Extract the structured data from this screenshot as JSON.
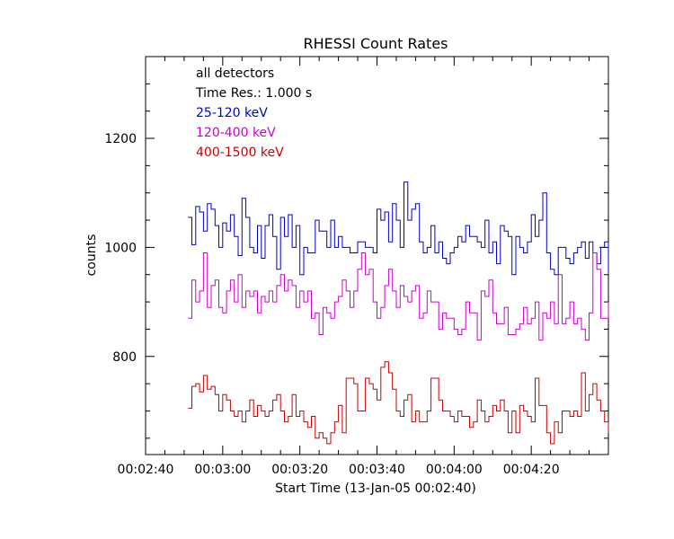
{
  "chart_data": {
    "type": "line",
    "title": "RHESSI Count Rates",
    "xlabel": "Start Time (13-Jan-05 00:02:40)",
    "ylabel": "counts",
    "xlim": [
      "00:02:40",
      "00:04:40"
    ],
    "ylim": [
      620,
      1350
    ],
    "x_ticks": [
      "00:02:40",
      "00:03:00",
      "00:03:20",
      "00:03:40",
      "00:04:00",
      "00:04:20"
    ],
    "y_ticks": [
      800,
      1000,
      1200
    ],
    "grid": false,
    "legend": {
      "placement": "top-left",
      "lines": [
        "all detectors",
        "Time Res.: 1.000 s"
      ]
    },
    "x_start": "00:02:51",
    "x_step_s": 1,
    "series": [
      {
        "name": "25-120 keV",
        "color": "#0000cc",
        "values": [
          1055,
          1005,
          1075,
          1065,
          1030,
          1080,
          1070,
          1040,
          1000,
          1045,
          1030,
          1060,
          1020,
          985,
          1090,
          1055,
          1000,
          990,
          1040,
          980,
          1040,
          1060,
          1020,
          960,
          1055,
          1020,
          1060,
          1000,
          1040,
          950,
          1000,
          990,
          990,
          1050,
          1030,
          1030,
          1000,
          1050,
          1000,
          1020,
          1000,
          1000,
          990,
          990,
          1010,
          1010,
          1000,
          1000,
          990,
          1070,
          1050,
          1065,
          1010,
          1080,
          1050,
          1000,
          1120,
          1050,
          1070,
          1080,
          1010,
          990,
          1000,
          1040,
          990,
          1010,
          980,
          970,
          990,
          1000,
          1020,
          1010,
          1040,
          1020,
          1020,
          1010,
          1000,
          1050,
          990,
          1010,
          970,
          1040,
          1030,
          1020,
          950,
          1020,
          1000,
          990,
          1010,
          1060,
          1020,
          1050,
          1100,
          990,
          960,
          950,
          1000,
          1000,
          980,
          970,
          990,
          1000,
          1010,
          980,
          1010,
          990,
          970,
          1000,
          1010,
          950,
          970,
          990,
          960,
          950,
          1030,
          940,
          920,
          1000,
          1000,
          960,
          970,
          920,
          940,
          960,
          970,
          950,
          950,
          980,
          980,
          990,
          990,
          970,
          910,
          940,
          950,
          960,
          980,
          1000
        ]
      },
      {
        "name": "120-400 keV",
        "color": "#cc00cc",
        "values": [
          870,
          940,
          900,
          920,
          990,
          890,
          930,
          940,
          890,
          880,
          920,
          940,
          900,
          950,
          890,
          920,
          910,
          920,
          880,
          910,
          900,
          920,
          900,
          930,
          950,
          920,
          940,
          930,
          890,
          920,
          900,
          920,
          870,
          880,
          840,
          890,
          880,
          870,
          900,
          910,
          940,
          920,
          890,
          920,
          960,
          990,
          950,
          960,
          900,
          870,
          890,
          930,
          960,
          920,
          890,
          930,
          910,
          900,
          920,
          930,
          870,
          880,
          920,
          900,
          900,
          850,
          880,
          870,
          870,
          850,
          840,
          850,
          900,
          880,
          880,
          830,
          920,
          910,
          940,
          880,
          860,
          860,
          890,
          840,
          840,
          850,
          860,
          890,
          860,
          870,
          900,
          830,
          880,
          870,
          900,
          860,
          950,
          860,
          870,
          900,
          860,
          870,
          850,
          830,
          880,
          990,
          960,
          870,
          870,
          900,
          880,
          900,
          850,
          900,
          860,
          850,
          870,
          900,
          940,
          860,
          840,
          880,
          930,
          860,
          860,
          840,
          880,
          850,
          840,
          880,
          890,
          910,
          890,
          900,
          920,
          860,
          880,
          870
        ]
      },
      {
        "name": "400-1500 keV",
        "color": "#cc0000",
        "values": [
          705,
          745,
          750,
          735,
          765,
          740,
          745,
          730,
          700,
          730,
          720,
          700,
          690,
          700,
          680,
          700,
          720,
          690,
          710,
          700,
          690,
          700,
          720,
          730,
          700,
          680,
          690,
          730,
          690,
          700,
          680,
          670,
          690,
          650,
          660,
          650,
          640,
          660,
          680,
          710,
          660,
          760,
          760,
          750,
          700,
          700,
          760,
          750,
          740,
          720,
          780,
          790,
          770,
          740,
          700,
          690,
          720,
          730,
          680,
          700,
          680,
          680,
          700,
          760,
          760,
          720,
          700,
          700,
          690,
          680,
          700,
          690,
          690,
          670,
          680,
          720,
          700,
          680,
          690,
          710,
          700,
          720,
          700,
          660,
          700,
          660,
          710,
          700,
          690,
          680,
          760,
          710,
          710,
          660,
          640,
          680,
          660,
          700,
          700,
          690,
          700,
          690,
          770,
          700,
          730,
          750,
          720,
          700,
          680,
          660,
          690,
          680,
          680,
          690,
          700,
          720,
          690,
          680,
          700,
          680,
          660,
          700,
          700,
          690,
          720,
          720,
          700,
          660,
          640,
          670,
          680,
          710,
          700,
          680,
          650,
          680,
          700,
          660,
          630
        ]
      }
    ]
  }
}
